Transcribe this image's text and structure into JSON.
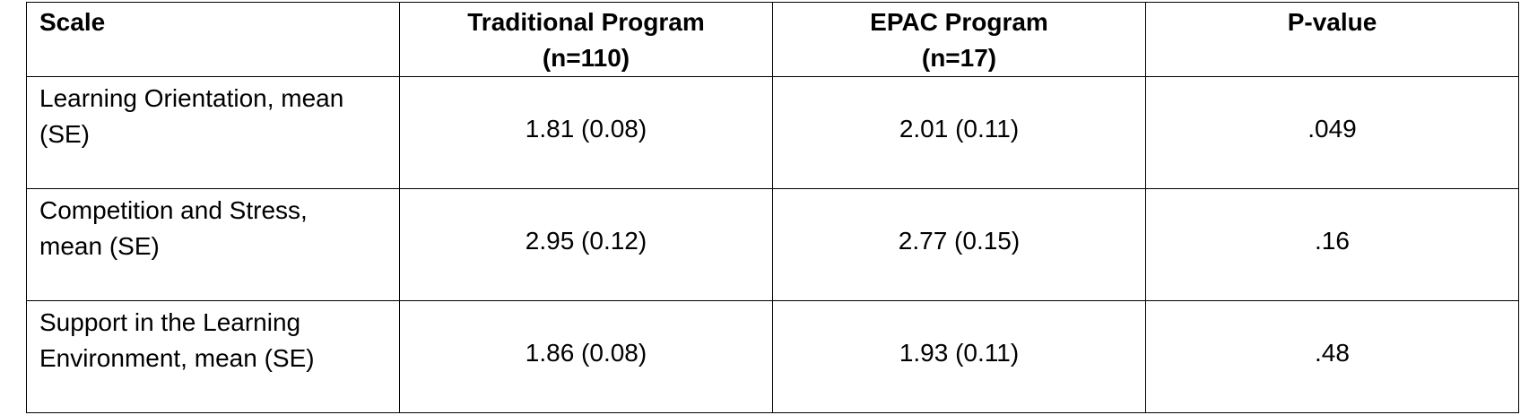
{
  "table": {
    "headers": {
      "scale": "Scale",
      "traditional": {
        "line1": "Traditional Program",
        "line2": "(n=110)"
      },
      "epac": {
        "line1": "EPAC Program",
        "line2": "(n=17)"
      },
      "pvalue": "P-value"
    },
    "rows": [
      {
        "label_line1": "Learning Orientation, mean",
        "label_line2": "(SE)",
        "traditional": "1.81 (0.08)",
        "epac": "2.01 (0.11)",
        "pvalue": ".049"
      },
      {
        "label_line1": "Competition and Stress,",
        "label_line2": "mean (SE)",
        "traditional": "2.95 (0.12)",
        "epac": "2.77 (0.15)",
        "pvalue": ".16"
      },
      {
        "label_line1": "Support in the Learning",
        "label_line2": "Environment, mean (SE)",
        "traditional": "1.86 (0.08)",
        "epac": "1.93 (0.11)",
        "pvalue": ".48"
      }
    ]
  }
}
